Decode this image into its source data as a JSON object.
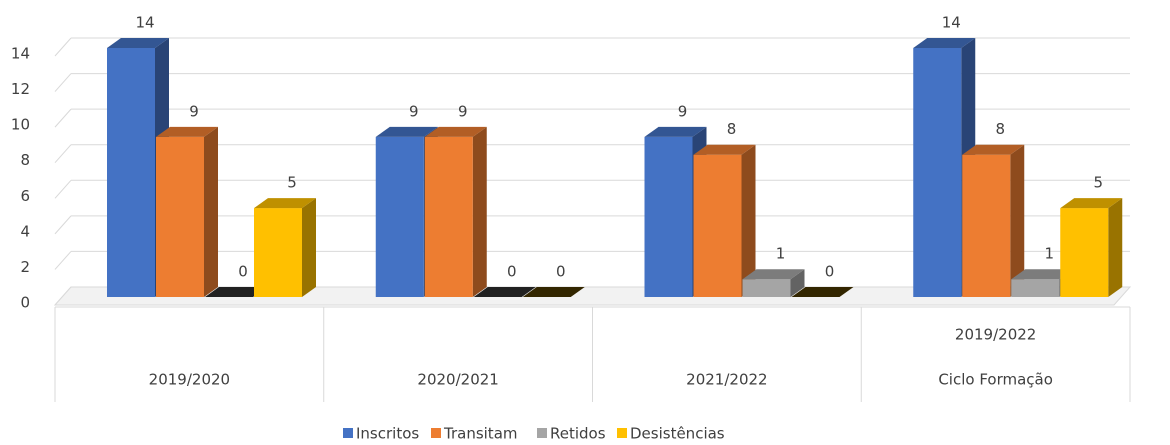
{
  "chart_data": {
    "type": "bar3d",
    "categories": [
      [
        "2019/2020"
      ],
      [
        "2020/2021"
      ],
      [
        "2021/2022"
      ],
      [
        "2019/2022",
        "Ciclo Formação"
      ]
    ],
    "series": [
      {
        "name": "Inscritos",
        "color": "#4472c4",
        "values": [
          14,
          9,
          9,
          14
        ]
      },
      {
        "name": "Transitam",
        "color": "#ed7d31",
        "values": [
          9,
          9,
          8,
          8
        ]
      },
      {
        "name": "Retidos",
        "color": "#a5a5a5",
        "values": [
          0,
          0,
          1,
          1
        ]
      },
      {
        "name": "Desistências",
        "color": "#ffc000",
        "values": [
          5,
          0,
          0,
          5
        ]
      }
    ],
    "ylim": [
      0,
      14
    ],
    "yticks": [
      0,
      2,
      4,
      6,
      8,
      10,
      12,
      14
    ],
    "grid": true,
    "legend": "bottom"
  }
}
